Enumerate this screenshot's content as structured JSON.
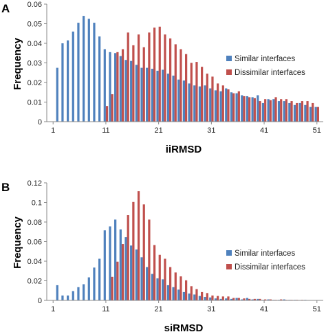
{
  "colors": {
    "similar": "#4f81bd",
    "dissimilar": "#c0504d",
    "axis": "#888888"
  },
  "chart_data": [
    {
      "panel_label": "A",
      "type": "bar",
      "xlabel": "iiRMSD",
      "ylabel": "Frequency",
      "ylim": [
        0,
        0.06
      ],
      "yticks": [
        "0",
        "0.01",
        "0.02",
        "0.03",
        "0.04",
        "0.05",
        "0.06"
      ],
      "xticks": [
        "1",
        "11",
        "21",
        "31",
        "41",
        "51"
      ],
      "x": [
        1,
        2,
        3,
        4,
        5,
        6,
        7,
        8,
        9,
        10,
        11,
        12,
        13,
        14,
        15,
        16,
        17,
        18,
        19,
        20,
        21,
        22,
        23,
        24,
        25,
        26,
        27,
        28,
        29,
        30,
        31,
        32,
        33,
        34,
        35,
        36,
        37,
        38,
        39,
        40,
        41,
        42,
        43,
        44,
        45,
        46,
        47,
        48,
        49,
        50,
        51
      ],
      "legend_position": "right",
      "grid": false,
      "series": [
        {
          "name": "Similar interfaces",
          "color_key": "similar",
          "values": [
            0.0,
            0.0275,
            0.04,
            0.0415,
            0.046,
            0.0505,
            0.054,
            0.0525,
            0.0505,
            0.0435,
            0.037,
            0.0355,
            0.035,
            0.0335,
            0.0315,
            0.031,
            0.029,
            0.0275,
            0.0275,
            0.027,
            0.026,
            0.0265,
            0.0245,
            0.0235,
            0.0215,
            0.021,
            0.0195,
            0.0185,
            0.018,
            0.0185,
            0.017,
            0.016,
            0.0155,
            0.017,
            0.015,
            0.0145,
            0.0135,
            0.013,
            0.0125,
            0.0135,
            0.0095,
            0.0115,
            0.0115,
            0.0105,
            0.0105,
            0.0095,
            0.0085,
            0.0095,
            0.0085,
            0.0075,
            0.0075
          ]
        },
        {
          "name": "Dissimilar interfaces",
          "color_key": "dissimilar",
          "values": [
            0.0,
            0.0,
            0.0,
            0.0,
            0.0,
            0.0,
            0.0,
            0.0,
            0.0,
            0.0,
            0.008,
            0.014,
            0.0355,
            0.037,
            0.0455,
            0.039,
            0.0445,
            0.038,
            0.0455,
            0.048,
            0.0485,
            0.0445,
            0.0425,
            0.0395,
            0.037,
            0.0345,
            0.03,
            0.0305,
            0.028,
            0.0245,
            0.023,
            0.0195,
            0.0185,
            0.0165,
            0.0145,
            0.0155,
            0.013,
            0.0125,
            0.012,
            0.0105,
            0.0115,
            0.011,
            0.0125,
            0.0115,
            0.0115,
            0.0105,
            0.0095,
            0.0105,
            0.0105,
            0.0095,
            0.0075
          ]
        }
      ]
    },
    {
      "panel_label": "B",
      "type": "bar",
      "xlabel": "siRMSD",
      "ylabel": "Frequency",
      "ylim": [
        0,
        0.12
      ],
      "yticks": [
        "0",
        "0.02",
        "0.04",
        "0.06",
        "0.08",
        "0.1",
        "0.12"
      ],
      "xticks": [
        "1",
        "11",
        "21",
        "31",
        "41",
        "51"
      ],
      "x": [
        1,
        2,
        3,
        4,
        5,
        6,
        7,
        8,
        9,
        10,
        11,
        12,
        13,
        14,
        15,
        16,
        17,
        18,
        19,
        20,
        21,
        22,
        23,
        24,
        25,
        26,
        27,
        28,
        29,
        30,
        31,
        32,
        33,
        34,
        35,
        36,
        37,
        38,
        39,
        40,
        41,
        42,
        43,
        44,
        45,
        46,
        47,
        48,
        49,
        50,
        51
      ],
      "legend_position": "right",
      "grid": false,
      "series": [
        {
          "name": "Similar interfaces",
          "color_key": "similar",
          "values": [
            0.0,
            0.0155,
            0.005,
            0.005,
            0.0095,
            0.0135,
            0.0165,
            0.0235,
            0.0335,
            0.0425,
            0.0715,
            0.0755,
            0.0825,
            0.0725,
            0.0645,
            0.056,
            0.052,
            0.044,
            0.034,
            0.027,
            0.0225,
            0.0215,
            0.0155,
            0.0135,
            0.011,
            0.0085,
            0.007,
            0.006,
            0.0045,
            0.0035,
            0.003,
            0.002,
            0.0015,
            0.002,
            0.0015,
            0.0025,
            0.001,
            0.0025,
            0.001,
            0.0015,
            0.0005,
            0.001,
            0.0005,
            0.0005,
            0.001,
            0.0005,
            0.0005,
            0.0002,
            0.0005,
            0.0002,
            0.0001
          ]
        },
        {
          "name": "Dissimilar interfaces",
          "color_key": "dissimilar",
          "values": [
            0.0,
            0.0,
            0.0,
            0.0,
            0.0,
            0.0,
            0.0,
            0.0,
            0.0,
            0.0,
            0.0,
            0.024,
            0.0395,
            0.0575,
            0.087,
            0.1005,
            0.1115,
            0.098,
            0.0825,
            0.0565,
            0.0465,
            0.0425,
            0.034,
            0.0285,
            0.0245,
            0.0205,
            0.0145,
            0.0115,
            0.0085,
            0.0075,
            0.005,
            0.0045,
            0.004,
            0.004,
            0.0025,
            0.0025,
            0.002,
            0.0015,
            0.0015,
            0.0015,
            0.001,
            0.001,
            0.0005,
            0.001,
            0.0005,
            0.0005,
            0.0005,
            0.0005,
            0.0002,
            0.0002,
            0.0002
          ]
        }
      ]
    }
  ]
}
